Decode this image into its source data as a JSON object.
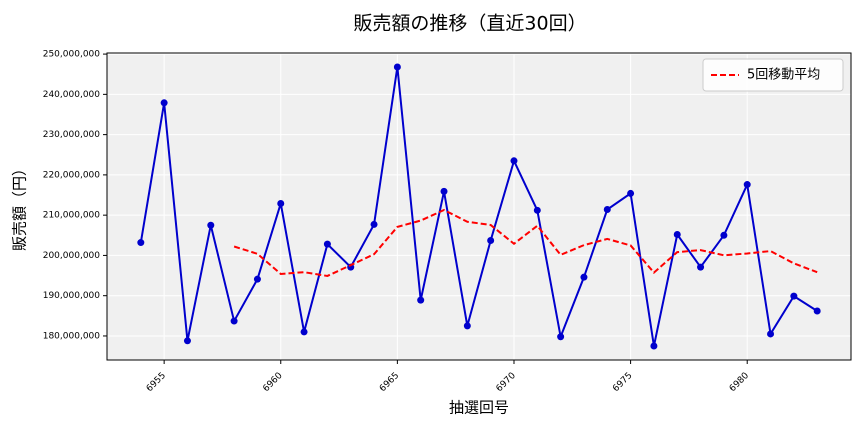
{
  "chart_data": {
    "type": "line",
    "title": "販売額の推移（直近30回）",
    "xlabel": "抽選回号",
    "ylabel": "販売額（円）",
    "x": [
      6954,
      6955,
      6956,
      6957,
      6958,
      6959,
      6960,
      6961,
      6962,
      6963,
      6964,
      6965,
      6966,
      6967,
      6968,
      6969,
      6970,
      6971,
      6972,
      6973,
      6974,
      6975,
      6976,
      6977,
      6978,
      6979,
      6980,
      6981,
      6982,
      6983
    ],
    "series": [
      {
        "color": "#0000cd",
        "markers": true,
        "dashed": false,
        "values": [
          203200000,
          237900000,
          178800000,
          207500000,
          183700000,
          194100000,
          212900000,
          181000000,
          202800000,
          197100000,
          207700000,
          246800000,
          188900000,
          215900000,
          182500000,
          203700000,
          223500000,
          211200000,
          179800000,
          194600000,
          211400000,
          215400000,
          177500000,
          205200000,
          197100000,
          205000000,
          217600000,
          180500000,
          189900000,
          186200000
        ]
      },
      {
        "name": "5回移動平均",
        "color": "#ff0000",
        "markers": false,
        "dashed": true,
        "values": [
          null,
          null,
          null,
          null,
          202220000,
          200400000,
          195400000,
          195840000,
          194900000,
          197580000,
          200300000,
          207080000,
          208660000,
          211280000,
          208360000,
          207560000,
          202900000,
          207360000,
          200140000,
          202560000,
          204100000,
          202480000,
          195740000,
          200820000,
          201320000,
          200040000,
          200480000,
          201080000,
          198020000,
          195840000
        ]
      }
    ],
    "xlim": [
      6952.55,
      6984.45
    ],
    "xticks": [
      6955,
      6960,
      6965,
      6970,
      6975,
      6980
    ],
    "ylim": [
      174030000,
      250270000
    ],
    "yticks": [
      {
        "value": 180000000,
        "label": "180,000,000"
      },
      {
        "value": 190000000,
        "label": "190,000,000"
      },
      {
        "value": 200000000,
        "label": "200,000,000"
      },
      {
        "value": 210000000,
        "label": "210,000,000"
      },
      {
        "value": 220000000,
        "label": "220,000,000"
      },
      {
        "value": 230000000,
        "label": "230,000,000"
      },
      {
        "value": 240000000,
        "label": "240,000,000"
      },
      {
        "value": 250000000,
        "label": "250,000,000"
      }
    ],
    "grid": true,
    "legend": "upper right"
  }
}
